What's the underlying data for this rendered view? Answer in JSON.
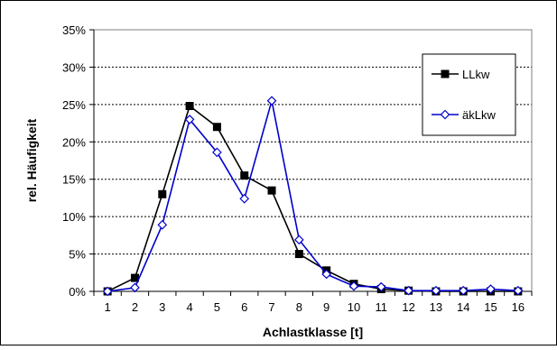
{
  "chart_data": {
    "type": "line",
    "title": "",
    "xlabel": "Achlastklasse [t]",
    "ylabel": "rel. Häufigkeit",
    "categories": [
      "1",
      "2",
      "3",
      "4",
      "5",
      "6",
      "7",
      "8",
      "9",
      "10",
      "11",
      "12",
      "13",
      "14",
      "15",
      "16"
    ],
    "y_ticks": [
      "0%",
      "5%",
      "10%",
      "15%",
      "20%",
      "25%",
      "30%",
      "35%"
    ],
    "ylim": [
      0,
      35
    ],
    "y_unit": "%",
    "grid": "horizontal dashed",
    "legend_position": "top-right",
    "series": [
      {
        "name": "LLkw",
        "color": "#000000",
        "marker": "filled-square",
        "values": [
          0.0,
          1.8,
          13.0,
          24.8,
          22.0,
          15.5,
          13.5,
          5.0,
          2.8,
          1.0,
          0.3,
          0.1,
          0.0,
          0.0,
          0.0,
          0.0
        ]
      },
      {
        "name": "äkLkw",
        "color": "#0000cc",
        "marker": "open-diamond",
        "values": [
          0.0,
          0.5,
          8.9,
          23.0,
          18.6,
          12.4,
          25.5,
          6.9,
          2.3,
          0.7,
          0.6,
          0.1,
          0.1,
          0.1,
          0.3,
          0.1
        ]
      }
    ]
  }
}
